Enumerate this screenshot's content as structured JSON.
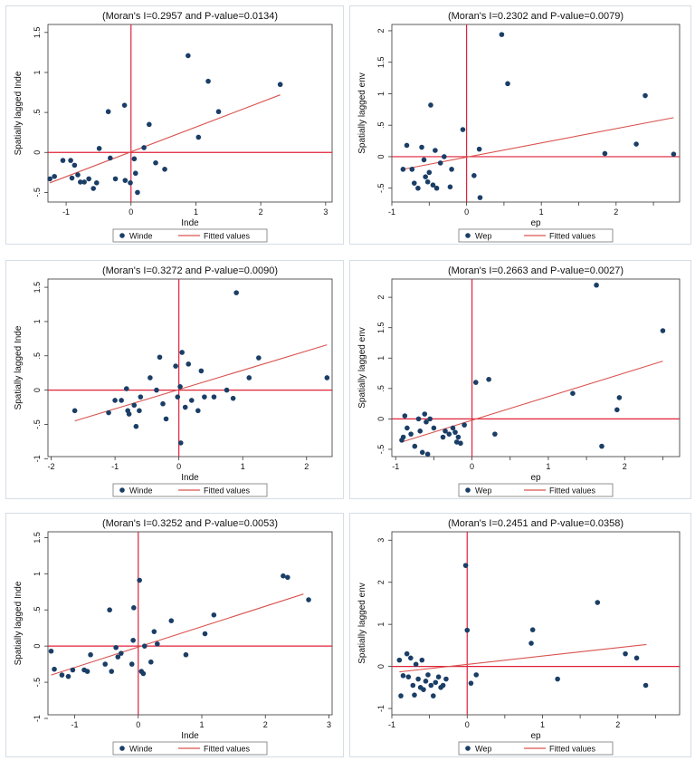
{
  "theme": {
    "point_color": "#1a3e66",
    "fit_color": "#d9534f",
    "ref_color": "#e0223a",
    "panel_bg": "#ffffff",
    "plot_bg": "#ffffff"
  },
  "chart_data": [
    {
      "type": "scatter",
      "title": "(Moran's I=0.2957 and P-value=0.0134)",
      "xlabel": "Inde",
      "ylabel": "Spatially lagged Inde",
      "xlim": [
        -1.28,
        3.1
      ],
      "ylim": [
        -0.62,
        1.6
      ],
      "xticks": [
        -1,
        0,
        1,
        2,
        3
      ],
      "yticks": [
        -0.5,
        0,
        0.5,
        1,
        1.5
      ],
      "xtick_labels": [
        "-1",
        "0",
        "1",
        "2",
        "3"
      ],
      "ytick_labels": [
        "-.5",
        "0",
        ".5",
        "1",
        "1.5"
      ],
      "points": [
        [
          -1.25,
          -0.33
        ],
        [
          -1.18,
          -0.3
        ],
        [
          -1.05,
          -0.1
        ],
        [
          -0.93,
          -0.1
        ],
        [
          -0.91,
          -0.32
        ],
        [
          -0.87,
          -0.16
        ],
        [
          -0.82,
          -0.28
        ],
        [
          -0.78,
          -0.37
        ],
        [
          -0.72,
          -0.37
        ],
        [
          -0.65,
          -0.33
        ],
        [
          -0.58,
          -0.45
        ],
        [
          -0.53,
          -0.38
        ],
        [
          -0.49,
          0.05
        ],
        [
          -0.35,
          0.51
        ],
        [
          -0.32,
          -0.07
        ],
        [
          -0.24,
          -0.33
        ],
        [
          -0.1,
          0.59
        ],
        [
          -0.09,
          -0.35
        ],
        [
          -0.01,
          -0.38
        ],
        [
          0.05,
          -0.08
        ],
        [
          0.07,
          -0.26
        ],
        [
          0.1,
          -0.5
        ],
        [
          0.2,
          0.06
        ],
        [
          0.28,
          0.35
        ],
        [
          0.38,
          -0.13
        ],
        [
          0.52,
          -0.21
        ],
        [
          0.88,
          1.21
        ],
        [
          1.04,
          0.19
        ],
        [
          1.19,
          0.89
        ],
        [
          1.35,
          0.51
        ],
        [
          2.3,
          0.85
        ]
      ],
      "fit": {
        "x": [
          -1.25,
          2.3
        ],
        "y": [
          -0.38,
          0.72
        ]
      },
      "legend": [
        {
          "label": "Winde"
        },
        {
          "label": "Fitted values"
        }
      ]
    },
    {
      "type": "scatter",
      "title": "(Moran's I=0.2302 and P-value=0.0079)",
      "xlabel": "ep",
      "ylabel": "Spatially lagged env",
      "xlim": [
        -1.0,
        2.85
      ],
      "ylim": [
        -0.72,
        2.1
      ],
      "xticks": [
        -1,
        -0.5,
        0,
        0.5,
        1,
        1.5,
        2,
        2.5
      ],
      "yticks": [
        -0.5,
        0,
        0.5,
        1,
        1.5,
        2
      ],
      "xtick_labels": [
        "-1",
        "",
        "0",
        "",
        "1",
        "",
        "2",
        ""
      ],
      "ytick_labels": [
        "-.5",
        "0",
        ".5",
        "1",
        "1.5",
        "2"
      ],
      "points": [
        [
          -0.85,
          -0.2
        ],
        [
          -0.8,
          0.18
        ],
        [
          -0.73,
          -0.2
        ],
        [
          -0.7,
          -0.42
        ],
        [
          -0.65,
          -0.5
        ],
        [
          -0.6,
          0.15
        ],
        [
          -0.57,
          -0.05
        ],
        [
          -0.55,
          -0.32
        ],
        [
          -0.52,
          -0.4
        ],
        [
          -0.5,
          -0.25
        ],
        [
          -0.48,
          0.82
        ],
        [
          -0.45,
          -0.45
        ],
        [
          -0.42,
          0.1
        ],
        [
          -0.4,
          -0.5
        ],
        [
          -0.35,
          -0.1
        ],
        [
          -0.3,
          0.0
        ],
        [
          -0.22,
          -0.48
        ],
        [
          -0.2,
          -0.2
        ],
        [
          -0.05,
          0.43
        ],
        [
          0.1,
          -0.3
        ],
        [
          0.17,
          0.12
        ],
        [
          0.18,
          -0.65
        ],
        [
          0.47,
          1.94
        ],
        [
          0.55,
          1.16
        ],
        [
          1.85,
          0.05
        ],
        [
          2.27,
          0.2
        ],
        [
          2.39,
          0.97
        ],
        [
          2.77,
          0.04
        ]
      ],
      "fit": {
        "x": [
          -0.85,
          2.77
        ],
        "y": [
          -0.2,
          0.62
        ]
      },
      "legend": [
        {
          "label": "Wep"
        },
        {
          "label": "Fitted values"
        }
      ]
    },
    {
      "type": "scatter",
      "title": "(Moran's I=0.3272 and P-value=0.0090)",
      "xlabel": "Inde",
      "ylabel": "Spatially lagged Inde",
      "xlim": [
        -2.05,
        2.4
      ],
      "ylim": [
        -0.97,
        1.62
      ],
      "xticks": [
        -2,
        -1,
        0,
        1,
        2
      ],
      "yticks": [
        -1,
        -0.5,
        0,
        0.5,
        1,
        1.5
      ],
      "xtick_labels": [
        "-2",
        "-1",
        "0",
        "1",
        "2"
      ],
      "ytick_labels": [
        "-1",
        "-.5",
        "0",
        ".5",
        "1",
        "1.5"
      ],
      "points": [
        [
          -1.63,
          -0.3
        ],
        [
          -1.1,
          -0.33
        ],
        [
          -1.0,
          -0.15
        ],
        [
          -0.9,
          -0.15
        ],
        [
          -0.82,
          0.02
        ],
        [
          -0.8,
          -0.3
        ],
        [
          -0.78,
          -0.35
        ],
        [
          -0.7,
          -0.22
        ],
        [
          -0.67,
          -0.53
        ],
        [
          -0.62,
          -0.3
        ],
        [
          -0.6,
          -0.1
        ],
        [
          -0.45,
          0.18
        ],
        [
          -0.35,
          0.0
        ],
        [
          -0.3,
          0.48
        ],
        [
          -0.25,
          -0.2
        ],
        [
          -0.2,
          -0.42
        ],
        [
          -0.05,
          0.35
        ],
        [
          -0.02,
          -0.1
        ],
        [
          0.02,
          0.05
        ],
        [
          0.03,
          -0.77
        ],
        [
          0.05,
          0.55
        ],
        [
          0.1,
          -0.25
        ],
        [
          0.15,
          0.38
        ],
        [
          0.2,
          -0.15
        ],
        [
          0.3,
          -0.3
        ],
        [
          0.35,
          0.28
        ],
        [
          0.4,
          -0.1
        ],
        [
          0.55,
          -0.1
        ],
        [
          0.75,
          0.0
        ],
        [
          0.85,
          -0.12
        ],
        [
          0.9,
          1.42
        ],
        [
          1.1,
          0.18
        ],
        [
          1.25,
          0.47
        ],
        [
          2.32,
          0.18
        ]
      ],
      "fit": {
        "x": [
          -1.63,
          2.32
        ],
        "y": [
          -0.45,
          0.66
        ]
      },
      "legend": [
        {
          "label": "Winde"
        },
        {
          "label": "Fitted values"
        }
      ]
    },
    {
      "type": "scatter",
      "title": "(Moran's I=0.2663 and P-value=0.0027)",
      "xlabel": "ep",
      "ylabel": "Spatially lagged env",
      "xlim": [
        -1.05,
        2.72
      ],
      "ylim": [
        -0.62,
        2.3
      ],
      "xticks": [
        -1,
        -0.5,
        0,
        0.5,
        1,
        1.5,
        2,
        2.5
      ],
      "yticks": [
        -0.5,
        0,
        0.5,
        1,
        1.5,
        2
      ],
      "xtick_labels": [
        "-1",
        "",
        "0",
        "",
        "1",
        "",
        "2",
        ""
      ],
      "ytick_labels": [
        "-.5",
        "0",
        ".5",
        "1",
        "1.5",
        "2"
      ],
      "points": [
        [
          -0.92,
          -0.35
        ],
        [
          -0.9,
          -0.3
        ],
        [
          -0.88,
          0.05
        ],
        [
          -0.85,
          -0.15
        ],
        [
          -0.8,
          -0.25
        ],
        [
          -0.75,
          -0.45
        ],
        [
          -0.7,
          0.0
        ],
        [
          -0.68,
          -0.2
        ],
        [
          -0.65,
          -0.55
        ],
        [
          -0.62,
          0.08
        ],
        [
          -0.6,
          -0.05
        ],
        [
          -0.58,
          -0.58
        ],
        [
          -0.55,
          0.0
        ],
        [
          -0.5,
          -0.15
        ],
        [
          -0.38,
          -0.3
        ],
        [
          -0.35,
          -0.2
        ],
        [
          -0.3,
          -0.25
        ],
        [
          -0.25,
          -0.15
        ],
        [
          -0.22,
          -0.22
        ],
        [
          -0.2,
          -0.38
        ],
        [
          -0.18,
          -0.3
        ],
        [
          -0.15,
          -0.4
        ],
        [
          -0.1,
          -0.1
        ],
        [
          0.05,
          0.6
        ],
        [
          0.22,
          0.65
        ],
        [
          0.3,
          -0.25
        ],
        [
          1.32,
          0.42
        ],
        [
          1.63,
          2.2
        ],
        [
          1.7,
          -0.45
        ],
        [
          1.9,
          0.15
        ],
        [
          1.93,
          0.35
        ],
        [
          2.5,
          1.45
        ]
      ],
      "fit": {
        "x": [
          -0.92,
          2.5
        ],
        "y": [
          -0.38,
          0.95
        ]
      },
      "legend": [
        {
          "label": "Wep"
        },
        {
          "label": "Fitted values"
        }
      ]
    },
    {
      "type": "scatter",
      "title": "(Moran's I=0.3252 and P-value=0.0053)",
      "xlabel": "Inde",
      "ylabel": "Spatially lagged Inde",
      "xlim": [
        -1.42,
        3.05
      ],
      "ylim": [
        -0.95,
        1.58
      ],
      "xticks": [
        -1,
        0,
        1,
        2,
        3
      ],
      "yticks": [
        -1,
        -0.5,
        0,
        0.5,
        1,
        1.5
      ],
      "xtick_labels": [
        "-1",
        "0",
        "1",
        "2",
        "3"
      ],
      "ytick_labels": [
        "-1",
        "-.5",
        "0",
        ".5",
        "1",
        "1.5"
      ],
      "points": [
        [
          -1.37,
          -0.07
        ],
        [
          -1.32,
          -0.32
        ],
        [
          -1.2,
          -0.4
        ],
        [
          -1.1,
          -0.42
        ],
        [
          -1.03,
          -0.33
        ],
        [
          -0.85,
          -0.33
        ],
        [
          -0.8,
          -0.35
        ],
        [
          -0.75,
          -0.12
        ],
        [
          -0.52,
          -0.25
        ],
        [
          -0.45,
          0.5
        ],
        [
          -0.42,
          -0.35
        ],
        [
          -0.35,
          -0.02
        ],
        [
          -0.32,
          -0.15
        ],
        [
          -0.27,
          -0.1
        ],
        [
          -0.1,
          -0.25
        ],
        [
          -0.08,
          0.08
        ],
        [
          -0.07,
          0.53
        ],
        [
          0.02,
          0.91
        ],
        [
          0.05,
          -0.35
        ],
        [
          0.08,
          -0.38
        ],
        [
          0.1,
          0.0
        ],
        [
          0.2,
          -0.22
        ],
        [
          0.25,
          0.2
        ],
        [
          0.3,
          0.03
        ],
        [
          0.52,
          0.35
        ],
        [
          0.75,
          -0.12
        ],
        [
          1.05,
          0.17
        ],
        [
          1.19,
          0.43
        ],
        [
          2.28,
          0.97
        ],
        [
          2.35,
          0.95
        ],
        [
          2.68,
          0.64
        ]
      ],
      "fit": {
        "x": [
          -1.37,
          2.6
        ],
        "y": [
          -0.4,
          0.72
        ]
      },
      "legend": [
        {
          "label": "Winde"
        },
        {
          "label": "Fitted values"
        }
      ]
    },
    {
      "type": "scatter",
      "title": "(Moran's I=0.2451 and P-value=0.0358)",
      "xlabel": "ep",
      "ylabel": "Spatially lagged env",
      "xlim": [
        -1.0,
        2.82
      ],
      "ylim": [
        -1.15,
        3.2
      ],
      "xticks": [
        -1,
        -0.5,
        0,
        0.5,
        1,
        1.5,
        2,
        2.5
      ],
      "yticks": [
        -1,
        0,
        1,
        2,
        3
      ],
      "xtick_labels": [
        "-1",
        "",
        "0",
        "",
        "1",
        "",
        "2",
        ""
      ],
      "ytick_labels": [
        "-1",
        "0",
        "1",
        "2",
        "3"
      ],
      "points": [
        [
          -0.9,
          0.15
        ],
        [
          -0.88,
          -0.7
        ],
        [
          -0.85,
          -0.22
        ],
        [
          -0.8,
          0.3
        ],
        [
          -0.78,
          -0.25
        ],
        [
          -0.75,
          0.2
        ],
        [
          -0.72,
          -0.45
        ],
        [
          -0.7,
          -0.68
        ],
        [
          -0.68,
          0.05
        ],
        [
          -0.65,
          -0.3
        ],
        [
          -0.62,
          -0.5
        ],
        [
          -0.6,
          0.15
        ],
        [
          -0.58,
          -0.55
        ],
        [
          -0.55,
          -0.35
        ],
        [
          -0.52,
          -0.2
        ],
        [
          -0.48,
          -0.45
        ],
        [
          -0.45,
          -0.7
        ],
        [
          -0.42,
          -0.38
        ],
        [
          -0.38,
          -0.25
        ],
        [
          -0.35,
          -0.5
        ],
        [
          -0.32,
          -0.45
        ],
        [
          -0.28,
          -0.3
        ],
        [
          -0.02,
          2.4
        ],
        [
          0.0,
          0.86
        ],
        [
          0.05,
          -0.4
        ],
        [
          0.12,
          -0.2
        ],
        [
          0.85,
          0.55
        ],
        [
          0.87,
          0.87
        ],
        [
          1.2,
          -0.3
        ],
        [
          1.73,
          1.52
        ],
        [
          2.1,
          0.3
        ],
        [
          2.25,
          0.2
        ],
        [
          2.37,
          -0.45
        ]
      ],
      "fit": {
        "x": [
          -0.9,
          2.38
        ],
        "y": [
          -0.13,
          0.52
        ]
      },
      "legend": [
        {
          "label": "Wep"
        },
        {
          "label": "Fitted values"
        }
      ]
    }
  ]
}
